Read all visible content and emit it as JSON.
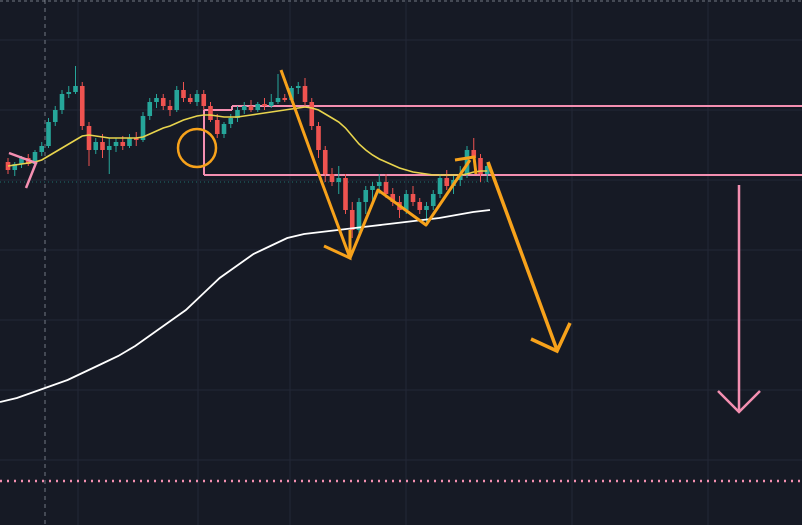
{
  "colors": {
    "background": "#161a25",
    "grid": "#232836",
    "up": "#26a69a",
    "down": "#ef5350",
    "ma_short": "#e8d44d",
    "ma_long": "#ffffff",
    "annotation_orange": "#f7a21b",
    "annotation_pink": "#f48fb1"
  },
  "chart_data": {
    "type": "candlestick",
    "title": "",
    "xlabel": "",
    "ylabel": "",
    "ylim": [
      0,
      100
    ],
    "grid": true,
    "candles": [
      {
        "o": 50,
        "h": 52,
        "l": 44,
        "c": 46
      },
      {
        "o": 46,
        "h": 50,
        "l": 43,
        "c": 49
      },
      {
        "o": 49,
        "h": 53,
        "l": 47,
        "c": 52
      },
      {
        "o": 52,
        "h": 54,
        "l": 48,
        "c": 49
      },
      {
        "o": 49,
        "h": 56,
        "l": 48,
        "c": 55
      },
      {
        "o": 55,
        "h": 60,
        "l": 53,
        "c": 58
      },
      {
        "o": 58,
        "h": 72,
        "l": 57,
        "c": 70
      },
      {
        "o": 70,
        "h": 78,
        "l": 68,
        "c": 76
      },
      {
        "o": 76,
        "h": 86,
        "l": 74,
        "c": 84
      },
      {
        "o": 84,
        "h": 88,
        "l": 82,
        "c": 85
      },
      {
        "o": 85,
        "h": 98,
        "l": 84,
        "c": 88
      },
      {
        "o": 88,
        "h": 90,
        "l": 66,
        "c": 68
      },
      {
        "o": 68,
        "h": 70,
        "l": 48,
        "c": 56
      },
      {
        "o": 56,
        "h": 62,
        "l": 54,
        "c": 60
      },
      {
        "o": 60,
        "h": 64,
        "l": 52,
        "c": 56
      },
      {
        "o": 56,
        "h": 62,
        "l": 44,
        "c": 58
      },
      {
        "o": 58,
        "h": 62,
        "l": 55,
        "c": 60
      },
      {
        "o": 60,
        "h": 63,
        "l": 56,
        "c": 58
      },
      {
        "o": 58,
        "h": 64,
        "l": 57,
        "c": 62
      },
      {
        "o": 62,
        "h": 65,
        "l": 58,
        "c": 61
      },
      {
        "o": 61,
        "h": 75,
        "l": 60,
        "c": 73
      },
      {
        "o": 73,
        "h": 82,
        "l": 71,
        "c": 80
      },
      {
        "o": 80,
        "h": 84,
        "l": 77,
        "c": 82
      },
      {
        "o": 82,
        "h": 84,
        "l": 76,
        "c": 78
      },
      {
        "o": 78,
        "h": 81,
        "l": 73,
        "c": 76
      },
      {
        "o": 76,
        "h": 88,
        "l": 75,
        "c": 86
      },
      {
        "o": 86,
        "h": 90,
        "l": 80,
        "c": 82
      },
      {
        "o": 82,
        "h": 84,
        "l": 79,
        "c": 80
      },
      {
        "o": 80,
        "h": 86,
        "l": 78,
        "c": 84
      },
      {
        "o": 84,
        "h": 86,
        "l": 76,
        "c": 78
      },
      {
        "o": 78,
        "h": 80,
        "l": 70,
        "c": 71
      },
      {
        "o": 71,
        "h": 74,
        "l": 62,
        "c": 64
      },
      {
        "o": 64,
        "h": 70,
        "l": 62,
        "c": 69
      },
      {
        "o": 69,
        "h": 74,
        "l": 67,
        "c": 72
      },
      {
        "o": 72,
        "h": 78,
        "l": 70,
        "c": 76
      },
      {
        "o": 76,
        "h": 80,
        "l": 74,
        "c": 78
      },
      {
        "o": 78,
        "h": 81,
        "l": 75,
        "c": 76
      },
      {
        "o": 76,
        "h": 80,
        "l": 75,
        "c": 79
      },
      {
        "o": 79,
        "h": 82,
        "l": 76,
        "c": 78
      },
      {
        "o": 78,
        "h": 84,
        "l": 77,
        "c": 80
      },
      {
        "o": 80,
        "h": 94,
        "l": 79,
        "c": 82
      },
      {
        "o": 82,
        "h": 84,
        "l": 80,
        "c": 81
      },
      {
        "o": 81,
        "h": 88,
        "l": 80,
        "c": 87
      },
      {
        "o": 87,
        "h": 90,
        "l": 84,
        "c": 88
      },
      {
        "o": 88,
        "h": 92,
        "l": 78,
        "c": 80
      },
      {
        "o": 80,
        "h": 82,
        "l": 66,
        "c": 68
      },
      {
        "o": 68,
        "h": 70,
        "l": 52,
        "c": 56
      },
      {
        "o": 56,
        "h": 58,
        "l": 40,
        "c": 44
      },
      {
        "o": 44,
        "h": 47,
        "l": 38,
        "c": 40
      },
      {
        "o": 40,
        "h": 48,
        "l": 34,
        "c": 42
      },
      {
        "o": 42,
        "h": 44,
        "l": 24,
        "c": 26
      },
      {
        "o": 26,
        "h": 30,
        "l": 12,
        "c": 16
      },
      {
        "o": 16,
        "h": 32,
        "l": 12,
        "c": 30
      },
      {
        "o": 30,
        "h": 38,
        "l": 24,
        "c": 36
      },
      {
        "o": 36,
        "h": 40,
        "l": 30,
        "c": 38
      },
      {
        "o": 38,
        "h": 44,
        "l": 34,
        "c": 40
      },
      {
        "o": 40,
        "h": 44,
        "l": 32,
        "c": 34
      },
      {
        "o": 34,
        "h": 37,
        "l": 28,
        "c": 30
      },
      {
        "o": 30,
        "h": 33,
        "l": 22,
        "c": 26
      },
      {
        "o": 26,
        "h": 36,
        "l": 24,
        "c": 34
      },
      {
        "o": 34,
        "h": 38,
        "l": 28,
        "c": 30
      },
      {
        "o": 30,
        "h": 32,
        "l": 24,
        "c": 26
      },
      {
        "o": 26,
        "h": 30,
        "l": 20,
        "c": 28
      },
      {
        "o": 28,
        "h": 36,
        "l": 26,
        "c": 34
      },
      {
        "o": 34,
        "h": 44,
        "l": 32,
        "c": 42
      },
      {
        "o": 42,
        "h": 46,
        "l": 36,
        "c": 38
      },
      {
        "o": 38,
        "h": 43,
        "l": 34,
        "c": 41
      },
      {
        "o": 41,
        "h": 48,
        "l": 38,
        "c": 44
      },
      {
        "o": 44,
        "h": 58,
        "l": 42,
        "c": 56
      },
      {
        "o": 56,
        "h": 62,
        "l": 50,
        "c": 52
      },
      {
        "o": 52,
        "h": 54,
        "l": 40,
        "c": 44
      },
      {
        "o": 44,
        "h": 50,
        "l": 40,
        "c": 48
      }
    ],
    "ma_short": [
      48,
      48.5,
      49,
      49.5,
      50,
      51,
      53,
      55,
      57,
      59,
      61,
      63,
      63.5,
      63,
      62.5,
      62,
      62,
      62,
      62,
      62,
      62.5,
      64,
      65.5,
      67,
      68,
      69.5,
      71,
      72,
      73,
      73.5,
      73.5,
      73,
      72.5,
      72.5,
      72.5,
      73,
      73.5,
      74,
      74.5,
      75,
      75.5,
      76,
      76.5,
      77,
      77.5,
      77,
      76,
      74,
      72,
      70,
      67,
      63,
      59,
      56,
      53.5,
      51.5,
      50,
      48.5,
      47,
      46,
      45,
      44.5,
      44,
      43.5,
      43.5,
      43.5,
      43.5,
      43.5,
      44,
      45,
      45.5,
      45.5
    ],
    "ma_long": [
      -70,
      -68,
      -65,
      -62,
      -59,
      -55,
      -51,
      -47,
      -42,
      -36,
      -30,
      -24,
      -16,
      -8,
      -2,
      4,
      8,
      12,
      14,
      15,
      16,
      17,
      18,
      19,
      20,
      21,
      22,
      23.5,
      25,
      26
    ],
    "levels": {
      "resistance_top": 78,
      "resistance_bottom": 43.5,
      "target": -110
    }
  }
}
